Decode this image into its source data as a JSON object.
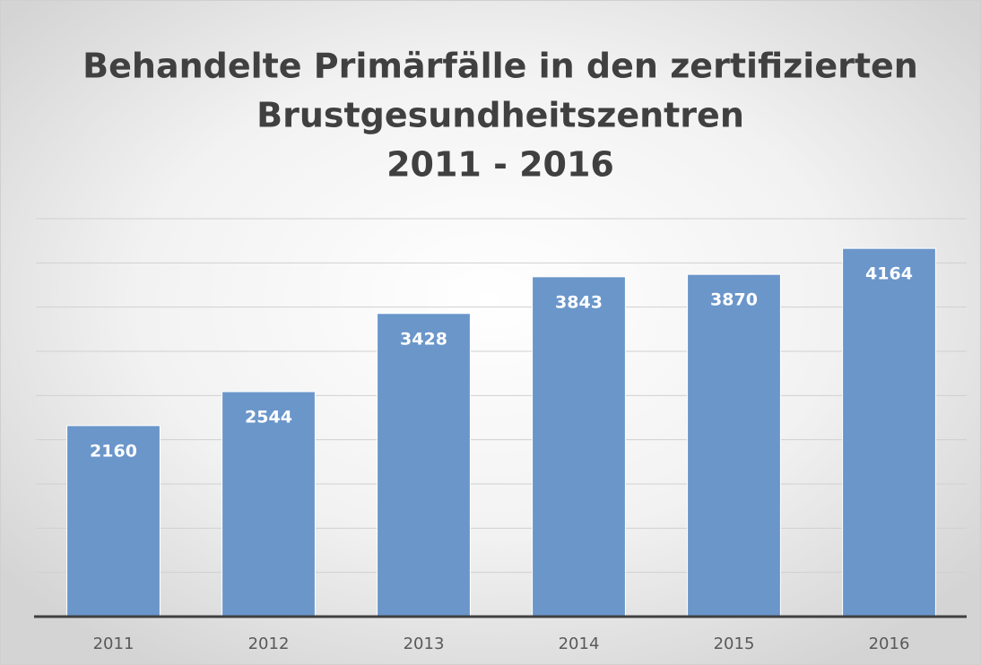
{
  "chart_data": {
    "type": "bar",
    "title": [
      "Behandelte Primärfälle in den zertifizierten",
      "Brustgesundheitszentren",
      "2011 - 2016"
    ],
    "categories": [
      "2011",
      "2012",
      "2013",
      "2014",
      "2015",
      "2016"
    ],
    "values": [
      2160,
      2544,
      3428,
      3843,
      3870,
      4164
    ],
    "color": "#6a96ca",
    "ylim": [
      0,
      4500
    ],
    "yticks": [
      0,
      500,
      1000,
      1500,
      2000,
      2500,
      3000,
      3500,
      4000,
      4500
    ],
    "grid": true,
    "data_labels": true
  }
}
